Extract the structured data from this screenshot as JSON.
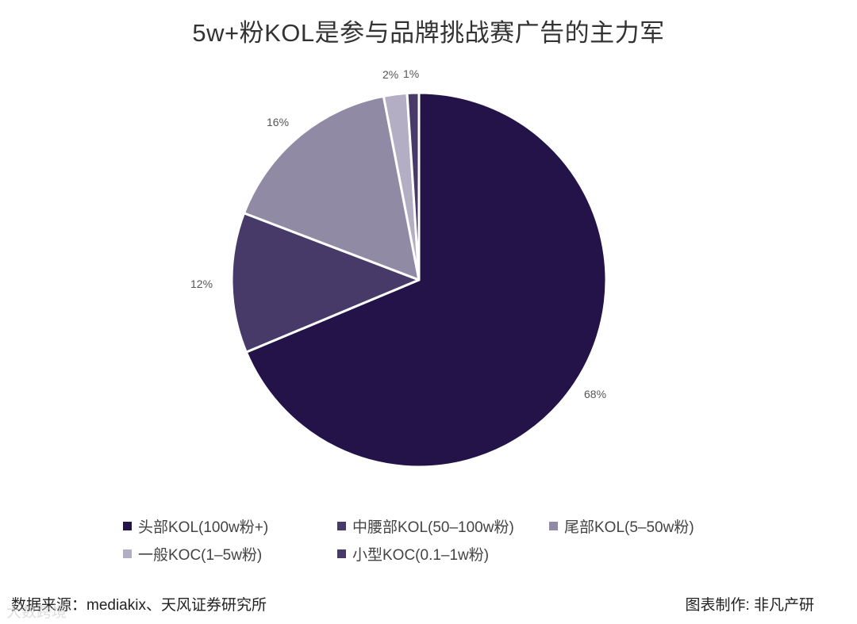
{
  "title": "5w+粉KOL是参与品牌挑战赛广告的主力军",
  "chart_data": {
    "type": "pie",
    "title": "5w+粉KOL是参与品牌挑战赛广告的主力军",
    "categories": [
      "头部KOL(100w粉+)",
      "中腰部KOL(50-100w粉)",
      "尾部KOL(5-50w粉)",
      "一般KOC(1-5w粉)",
      "小型KOC(0.1-1w粉)"
    ],
    "values": [
      68,
      12,
      16,
      2,
      1
    ],
    "unit": "%",
    "colors": [
      "#241349",
      "#483a68",
      "#918aa4",
      "#b3aec3",
      "#483a68"
    ],
    "start_angle": "12 o'clock, clockwise",
    "legend_position": "bottom"
  },
  "labels": {
    "s0": "68%",
    "s1": "12%",
    "s2": "16%",
    "s3": "2%",
    "s4": "1%"
  },
  "legend": [
    {
      "label": "头部KOL(100w粉+)",
      "color": "#241349"
    },
    {
      "label": "中腰部KOL(50–100w粉)",
      "color": "#483a68"
    },
    {
      "label": "尾部KOL(5–50w粉)",
      "color": "#918aa4"
    },
    {
      "label": "一般KOC(1–5w粉)",
      "color": "#b3aec3"
    },
    {
      "label": "小型KOC(0.1–1w粉)",
      "color": "#483a68"
    }
  ],
  "footer": {
    "source": "数据来源：mediakix、天风证券研究所",
    "credit": "图表制作: 非凡产研",
    "watermark": "大数跨境"
  }
}
